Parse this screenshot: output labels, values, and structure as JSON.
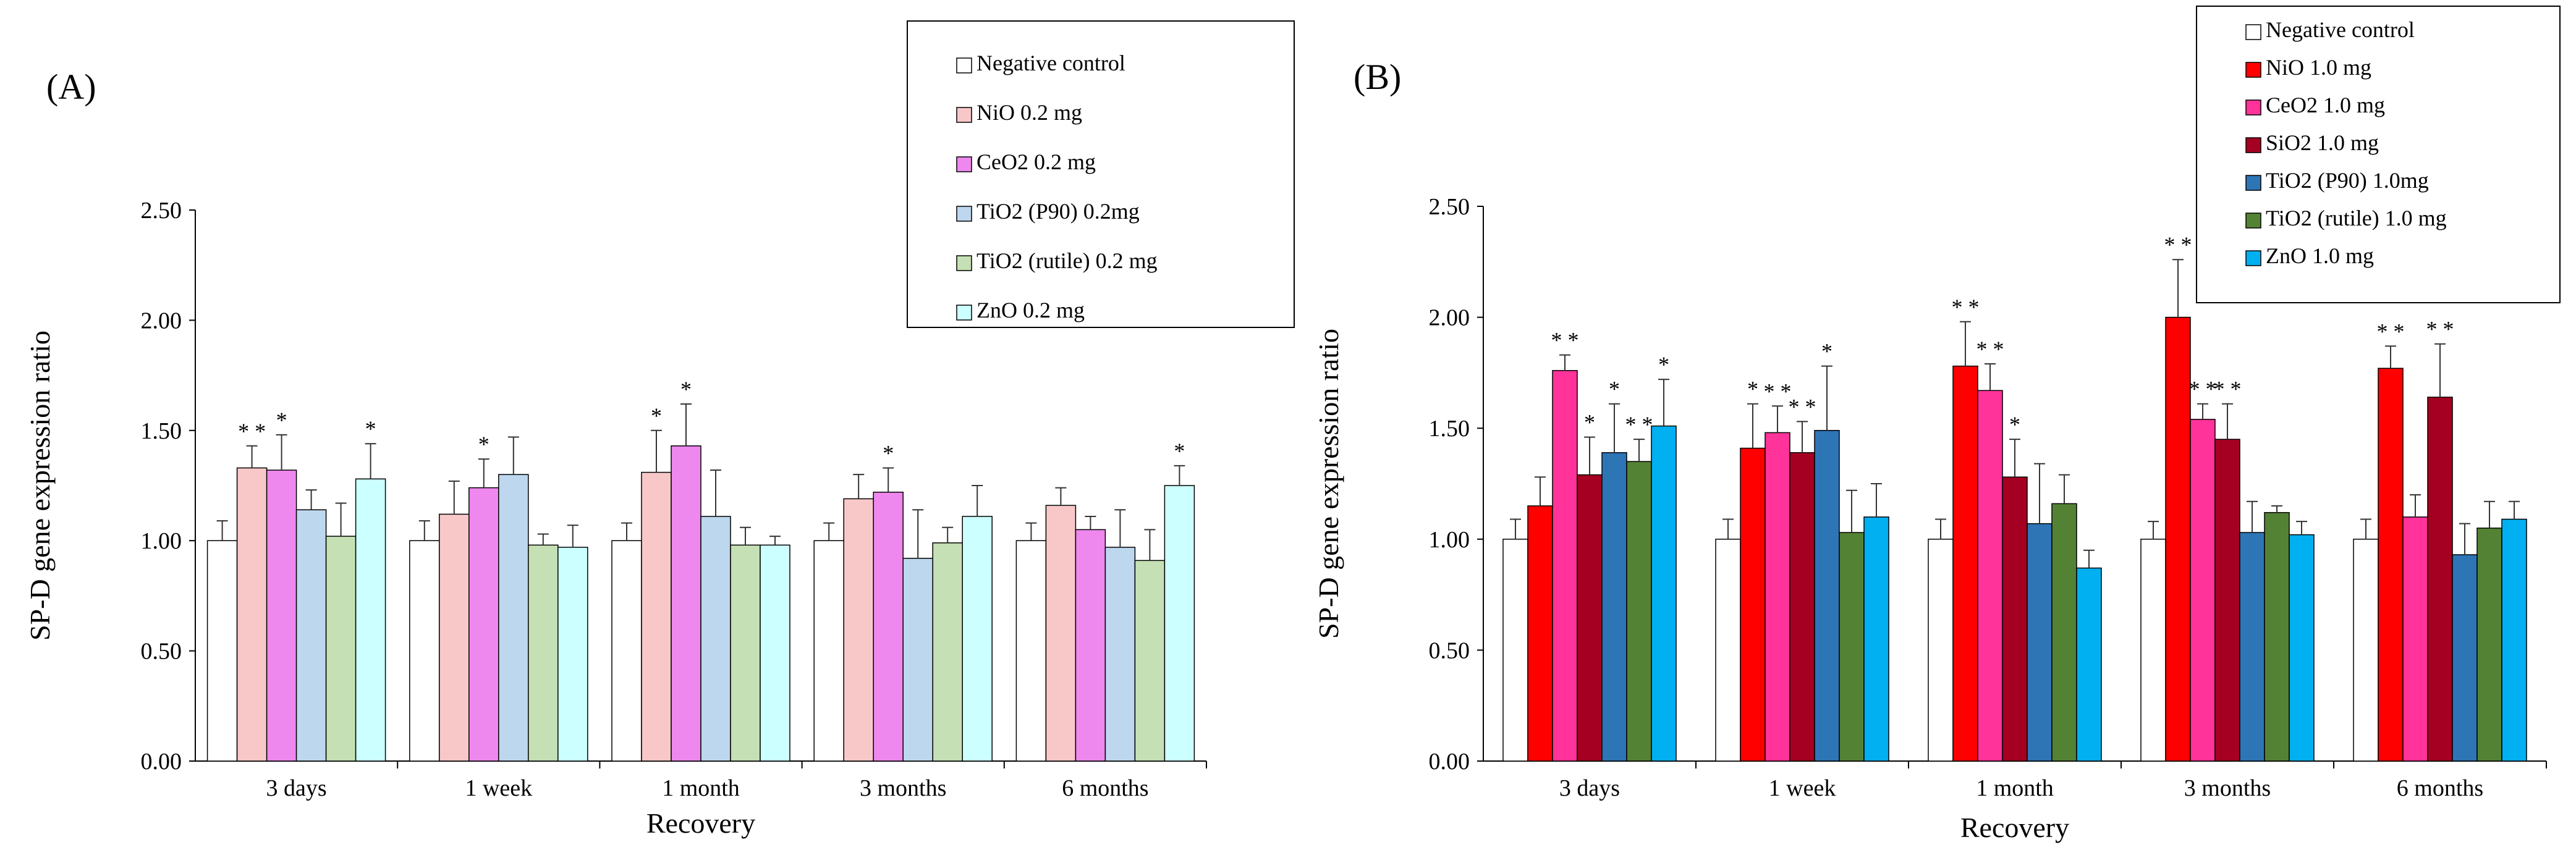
{
  "chart_data": [
    {
      "panel_label": "(A)",
      "type": "bar",
      "title": "",
      "xlabel": "Recovery",
      "ylabel": "SP-D gene expression ratio",
      "ylim": [
        0,
        2.5
      ],
      "yticks": [
        "0.00",
        "0.50",
        "1.00",
        "1.50",
        "2.00",
        "2.50"
      ],
      "categories": [
        "3 days",
        "1 week",
        "1 month",
        "3 months",
        "6 months"
      ],
      "legend_position": "top-right",
      "series": [
        {
          "name": "Negative control",
          "color": "#ffffff",
          "values": [
            1.0,
            1.0,
            1.0,
            1.0,
            1.0
          ],
          "errors": [
            0.09,
            0.09,
            0.08,
            0.08,
            0.08
          ],
          "stars": [
            "",
            "",
            "",
            "",
            ""
          ]
        },
        {
          "name": "NiO 0.2 mg",
          "color": "#f8c8c8",
          "values": [
            1.33,
            1.12,
            1.31,
            1.19,
            1.16
          ],
          "errors": [
            0.1,
            0.15,
            0.19,
            0.11,
            0.08
          ],
          "stars": [
            "* *",
            "",
            "*",
            "",
            ""
          ]
        },
        {
          "name": "CeO2 0.2 mg",
          "color": "#ee88ee",
          "values": [
            1.32,
            1.24,
            1.43,
            1.22,
            1.05
          ],
          "errors": [
            0.16,
            0.13,
            0.19,
            0.11,
            0.06
          ],
          "stars": [
            "*",
            "*",
            "*",
            "*",
            ""
          ]
        },
        {
          "name": "TiO2 (P90) 0.2mg",
          "color": "#bdd7ee",
          "values": [
            1.14,
            1.3,
            1.11,
            0.92,
            0.97
          ],
          "errors": [
            0.09,
            0.17,
            0.21,
            0.22,
            0.17
          ],
          "stars": [
            "",
            "",
            "",
            "",
            ""
          ]
        },
        {
          "name": "TiO2 (rutile) 0.2 mg",
          "color": "#c5e0b4",
          "values": [
            1.02,
            0.98,
            0.98,
            0.99,
            0.91
          ],
          "errors": [
            0.15,
            0.05,
            0.08,
            0.07,
            0.14
          ],
          "stars": [
            "",
            "",
            "",
            "",
            ""
          ]
        },
        {
          "name": "ZnO 0.2 mg",
          "color": "#ccffff",
          "values": [
            1.28,
            0.97,
            0.98,
            1.11,
            1.25
          ],
          "errors": [
            0.16,
            0.1,
            0.04,
            0.14,
            0.09
          ],
          "stars": [
            "*",
            "",
            "",
            "",
            "*"
          ]
        }
      ]
    },
    {
      "panel_label": "(B)",
      "type": "bar",
      "title": "",
      "xlabel": "Recovery",
      "ylabel": "SP-D gene expression ratio",
      "ylim": [
        0,
        2.5
      ],
      "yticks": [
        "0.00",
        "0.50",
        "1.00",
        "1.50",
        "2.00",
        "2.50"
      ],
      "categories": [
        "3 days",
        "1 week",
        "1 month",
        "3 months",
        "6 months"
      ],
      "legend_position": "top-right",
      "series": [
        {
          "name": "Negative control",
          "color": "#ffffff",
          "values": [
            1.0,
            1.0,
            1.0,
            1.0,
            1.0
          ],
          "errors": [
            0.09,
            0.09,
            0.09,
            0.08,
            0.09
          ],
          "stars": [
            "",
            "",
            "",
            "",
            ""
          ]
        },
        {
          "name": "NiO 1.0 mg",
          "color": "#ff0000",
          "values": [
            1.15,
            1.41,
            1.78,
            2.0,
            1.77
          ],
          "errors": [
            0.13,
            0.2,
            0.2,
            0.26,
            0.1
          ],
          "stars": [
            "",
            "*",
            "* *",
            "* *",
            "* *"
          ]
        },
        {
          "name": "CeO2 1.0 mg",
          "color": "#ff3399",
          "values": [
            1.76,
            1.48,
            1.67,
            1.54,
            1.1
          ],
          "errors": [
            0.07,
            0.12,
            0.12,
            0.07,
            0.1
          ],
          "stars": [
            "* *",
            "* *",
            "* *",
            "* *",
            ""
          ]
        },
        {
          "name": "SiO2 1.0 mg",
          "color": "#a50021",
          "values": [
            1.29,
            1.39,
            1.28,
            1.45,
            1.64
          ],
          "errors": [
            0.17,
            0.14,
            0.17,
            0.16,
            0.24
          ],
          "stars": [
            "*",
            "* *",
            "*",
            "* *",
            "* *"
          ]
        },
        {
          "name": "TiO2 (P90) 1.0mg",
          "color": "#2e75b6",
          "values": [
            1.39,
            1.49,
            1.07,
            1.03,
            0.93
          ],
          "errors": [
            0.22,
            0.29,
            0.27,
            0.14,
            0.14
          ],
          "stars": [
            "*",
            "*",
            "",
            "",
            ""
          ]
        },
        {
          "name": "TiO2 (rutile) 1.0 mg",
          "color": "#548235",
          "values": [
            1.35,
            1.03,
            1.16,
            1.12,
            1.05
          ],
          "errors": [
            0.1,
            0.19,
            0.13,
            0.03,
            0.12
          ],
          "stars": [
            "* *",
            "",
            "",
            "",
            ""
          ]
        },
        {
          "name": "ZnO 1.0 mg",
          "color": "#00b0f0",
          "values": [
            1.51,
            1.1,
            0.87,
            1.02,
            1.09
          ],
          "errors": [
            0.21,
            0.15,
            0.08,
            0.06,
            0.08
          ],
          "stars": [
            "*",
            "",
            "",
            "",
            ""
          ]
        }
      ]
    }
  ]
}
